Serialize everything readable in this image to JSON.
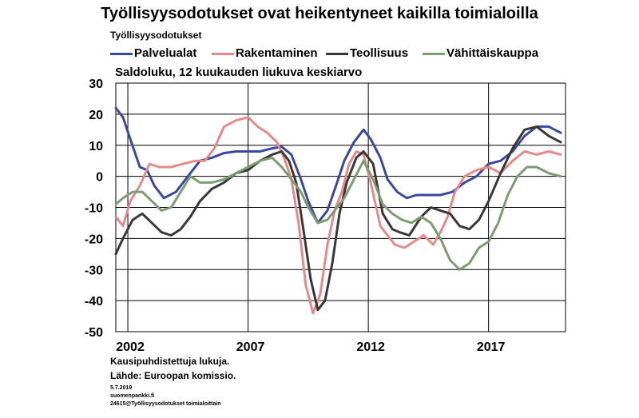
{
  "chart_data": {
    "type": "line",
    "title": "Työllisyysodotukset ovat heikentyneet kaikilla toimialoilla",
    "subtitle": "Työllisyysodotukset",
    "ylabel": "Saldoluku, 12 kuukauden liukuva keskiarvo",
    "xlim": [
      2001.5,
      2020.2
    ],
    "ylim": [
      -50,
      30
    ],
    "y_ticks": [
      30,
      20,
      10,
      0,
      -10,
      -20,
      -30,
      -40,
      -50
    ],
    "x_ticks": [
      {
        "value": 2002,
        "label": "2002"
      },
      {
        "value": 2007,
        "label": "2007"
      },
      {
        "value": 2012,
        "label": "2012"
      },
      {
        "value": 2017,
        "label": "2017"
      }
    ],
    "grid": "horizontal",
    "series": [
      {
        "name": "Palvelualat",
        "color": "#3a49a0",
        "x": [
          2001.5,
          2001.8,
          2002.1,
          2002.5,
          2002.8,
          2003.1,
          2003.5,
          2004.0,
          2004.5,
          2005.0,
          2005.5,
          2006.0,
          2006.5,
          2007.0,
          2007.5,
          2008.0,
          2008.4,
          2008.8,
          2009.2,
          2009.5,
          2009.9,
          2010.3,
          2010.7,
          2011.0,
          2011.4,
          2011.8,
          2012.1,
          2012.5,
          2012.8,
          2013.2,
          2013.6,
          2014.0,
          2014.5,
          2015.0,
          2015.5,
          2016.0,
          2016.5,
          2017.0,
          2017.5,
          2018.0,
          2018.5,
          2019.0,
          2019.5,
          2020.0
        ],
        "y": [
          22,
          19,
          12,
          3,
          2,
          -3,
          -7,
          -5,
          0,
          5,
          6,
          7.5,
          8,
          8,
          8,
          9,
          9.5,
          7,
          -1,
          -8,
          -15,
          -11,
          -2,
          5,
          11,
          15,
          12,
          6,
          -1,
          -5,
          -7,
          -6,
          -6,
          -6,
          -5,
          -2,
          0,
          4,
          5,
          8,
          13,
          16,
          16,
          14
        ]
      },
      {
        "name": "Rakentaminen",
        "color": "#e58a8a",
        "x": [
          2001.5,
          2001.8,
          2002.1,
          2002.5,
          2002.9,
          2003.3,
          2003.8,
          2004.3,
          2004.8,
          2005.2,
          2005.6,
          2006.0,
          2006.5,
          2007.0,
          2007.4,
          2007.8,
          2008.2,
          2008.5,
          2008.8,
          2009.1,
          2009.4,
          2009.7,
          2010.0,
          2010.3,
          2010.6,
          2010.9,
          2011.2,
          2011.5,
          2011.8,
          2012.1,
          2012.5,
          2012.8,
          2013.1,
          2013.5,
          2013.9,
          2014.3,
          2014.7,
          2015.0,
          2015.3,
          2015.6,
          2016.0,
          2016.5,
          2017.0,
          2017.5,
          2018.0,
          2018.5,
          2019.0,
          2019.5,
          2020.0
        ],
        "y": [
          -13,
          -16,
          -8,
          -3,
          4,
          3,
          3,
          4,
          5,
          5,
          9,
          16,
          18,
          19,
          16,
          14,
          11,
          6,
          -1,
          -15,
          -35,
          -44,
          -38,
          -22,
          -11,
          -5,
          4,
          8,
          7,
          -2,
          -16,
          -19,
          -22,
          -23,
          -21,
          -19,
          -22,
          -18,
          -13,
          -5,
          0,
          2,
          3,
          1,
          5,
          8,
          7,
          8,
          7
        ]
      },
      {
        "name": "Teollisuus",
        "color": "#383838",
        "x": [
          2001.5,
          2001.8,
          2002.2,
          2002.6,
          2003.0,
          2003.4,
          2003.8,
          2004.2,
          2004.6,
          2005.0,
          2005.5,
          2006.0,
          2006.5,
          2007.0,
          2007.5,
          2008.0,
          2008.4,
          2008.7,
          2009.0,
          2009.3,
          2009.6,
          2009.9,
          2010.2,
          2010.5,
          2010.8,
          2011.1,
          2011.5,
          2011.8,
          2012.2,
          2012.6,
          2013.0,
          2013.3,
          2013.7,
          2014.2,
          2014.6,
          2015.0,
          2015.4,
          2015.8,
          2016.2,
          2016.6,
          2017.0,
          2017.5,
          2018.0,
          2018.5,
          2019.0,
          2019.5,
          2020.0
        ],
        "y": [
          -25,
          -20,
          -14,
          -12,
          -15,
          -18,
          -19,
          -17,
          -13,
          -8,
          -4,
          -2,
          1,
          2,
          5,
          7,
          8,
          5,
          -2,
          -17,
          -33,
          -43,
          -40,
          -28,
          -12,
          -2,
          6,
          8,
          4,
          -12,
          -17,
          -18,
          -19,
          -13,
          -10,
          -11,
          -12,
          -16,
          -17,
          -14,
          -8,
          1,
          9,
          15,
          16,
          13,
          11
        ]
      },
      {
        "name": "Vähittäiskauppa",
        "color": "#7d9c72",
        "x": [
          2001.5,
          2001.8,
          2002.2,
          2002.6,
          2003.0,
          2003.4,
          2003.8,
          2004.2,
          2004.6,
          2005.0,
          2005.5,
          2006.0,
          2006.5,
          2007.0,
          2007.5,
          2008.0,
          2008.4,
          2008.8,
          2009.2,
          2009.5,
          2009.9,
          2010.3,
          2010.6,
          2011.0,
          2011.4,
          2011.8,
          2012.2,
          2012.6,
          2013.0,
          2013.4,
          2013.8,
          2014.2,
          2014.6,
          2015.0,
          2015.4,
          2015.8,
          2016.2,
          2016.6,
          2017.0,
          2017.4,
          2017.8,
          2018.2,
          2018.6,
          2019.0,
          2019.5,
          2020.0
        ],
        "y": [
          -9,
          -7,
          -5,
          -5,
          -8,
          -11,
          -10,
          -5,
          0,
          -2,
          -2,
          -1,
          1,
          3,
          5,
          6,
          3,
          -1,
          -5,
          -10,
          -15,
          -14,
          -11,
          -7,
          -1,
          5,
          -1,
          -9,
          -12,
          -14,
          -15,
          -13,
          -15,
          -20,
          -27,
          -30,
          -28,
          -23,
          -21,
          -15,
          -6,
          0,
          3,
          3,
          1,
          0
        ]
      }
    ]
  },
  "notes": {
    "line1": "Kausipuhdistettuja lukuja.",
    "line2": "Lähde: Euroopan komissio.",
    "line3": "5.7.2019",
    "line4": "suomenpankki.fi",
    "line5": "24615@Työllisyysodotukset toimialoittain"
  }
}
